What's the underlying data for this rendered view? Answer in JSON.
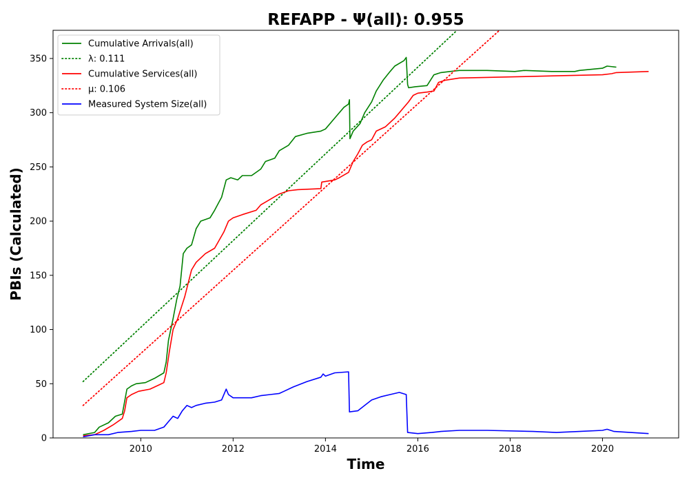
{
  "chart_data": {
    "type": "line",
    "title": "REFAPP -  Ψ(all): 0.955",
    "xlabel": "Time",
    "ylabel": "PBIs (Calculated)",
    "xlim": [
      2008.1,
      2021.65
    ],
    "ylim": [
      0,
      376
    ],
    "xticks": [
      2010,
      2012,
      2014,
      2016,
      2018,
      2020
    ],
    "yticks": [
      0,
      50,
      100,
      150,
      200,
      250,
      300,
      350
    ],
    "grid": false,
    "legend_position": "top-left",
    "legend": [
      {
        "label": "Cumulative Arrivals(all)",
        "color": "#008000",
        "style": "solid"
      },
      {
        "label": "λ: 0.111",
        "color": "#008000",
        "style": "dotted"
      },
      {
        "label": "Cumulative Services(all)",
        "color": "#ff0000",
        "style": "solid"
      },
      {
        "label": "μ: 0.106",
        "color": "#ff0000",
        "style": "dotted"
      },
      {
        "label": "Measured System Size(all)",
        "color": "#0000ff",
        "style": "solid"
      }
    ],
    "series": [
      {
        "name": "Cumulative Arrivals(all)",
        "color": "#008000",
        "style": "solid",
        "points": [
          [
            2008.75,
            3
          ],
          [
            2009.0,
            5
          ],
          [
            2009.1,
            10
          ],
          [
            2009.3,
            14
          ],
          [
            2009.45,
            20
          ],
          [
            2009.6,
            22
          ],
          [
            2009.7,
            45
          ],
          [
            2009.8,
            48
          ],
          [
            2009.9,
            50
          ],
          [
            2010.1,
            51
          ],
          [
            2010.3,
            55
          ],
          [
            2010.5,
            60
          ],
          [
            2010.55,
            70
          ],
          [
            2010.6,
            90
          ],
          [
            2010.7,
            110
          ],
          [
            2010.78,
            128
          ],
          [
            2010.85,
            140
          ],
          [
            2010.92,
            170
          ],
          [
            2011.0,
            175
          ],
          [
            2011.1,
            178
          ],
          [
            2011.2,
            193
          ],
          [
            2011.3,
            200
          ],
          [
            2011.5,
            203
          ],
          [
            2011.6,
            210
          ],
          [
            2011.7,
            218
          ],
          [
            2011.75,
            222
          ],
          [
            2011.85,
            238
          ],
          [
            2011.95,
            240
          ],
          [
            2012.1,
            238
          ],
          [
            2012.2,
            242
          ],
          [
            2012.4,
            242
          ],
          [
            2012.6,
            248
          ],
          [
            2012.7,
            255
          ],
          [
            2012.9,
            258
          ],
          [
            2013.0,
            265
          ],
          [
            2013.2,
            270
          ],
          [
            2013.35,
            278
          ],
          [
            2013.6,
            281
          ],
          [
            2013.9,
            283
          ],
          [
            2014.0,
            285
          ],
          [
            2014.2,
            295
          ],
          [
            2014.4,
            305
          ],
          [
            2014.5,
            308
          ],
          [
            2014.52,
            312
          ],
          [
            2014.53,
            276
          ],
          [
            2014.6,
            283
          ],
          [
            2014.75,
            290
          ],
          [
            2014.85,
            300
          ],
          [
            2015.0,
            310
          ],
          [
            2015.1,
            320
          ],
          [
            2015.25,
            330
          ],
          [
            2015.4,
            338
          ],
          [
            2015.5,
            343
          ],
          [
            2015.7,
            348
          ],
          [
            2015.75,
            351
          ],
          [
            2015.78,
            326
          ],
          [
            2015.8,
            323
          ],
          [
            2015.95,
            324
          ],
          [
            2016.2,
            325
          ],
          [
            2016.35,
            335
          ],
          [
            2016.5,
            337
          ],
          [
            2016.7,
            338
          ],
          [
            2016.9,
            339
          ],
          [
            2017.5,
            339
          ],
          [
            2018.1,
            338
          ],
          [
            2018.3,
            339
          ],
          [
            2018.9,
            338
          ],
          [
            2019.4,
            338
          ],
          [
            2019.5,
            339
          ],
          [
            2019.75,
            340
          ],
          [
            2020.0,
            341
          ],
          [
            2020.1,
            343
          ],
          [
            2020.3,
            342
          ]
        ]
      },
      {
        "name": "λ: 0.111",
        "color": "#008000",
        "style": "dotted",
        "points": [
          [
            2008.75,
            52
          ],
          [
            2016.85,
            376
          ]
        ]
      },
      {
        "name": "Cumulative Services(all)",
        "color": "#ff0000",
        "style": "solid",
        "points": [
          [
            2008.75,
            2
          ],
          [
            2009.0,
            3
          ],
          [
            2009.2,
            7
          ],
          [
            2009.4,
            12
          ],
          [
            2009.6,
            18
          ],
          [
            2009.65,
            25
          ],
          [
            2009.7,
            37
          ],
          [
            2009.8,
            40
          ],
          [
            2009.95,
            43
          ],
          [
            2010.2,
            45
          ],
          [
            2010.4,
            49
          ],
          [
            2010.5,
            51
          ],
          [
            2010.55,
            60
          ],
          [
            2010.62,
            80
          ],
          [
            2010.7,
            100
          ],
          [
            2010.8,
            110
          ],
          [
            2010.95,
            130
          ],
          [
            2011.1,
            155
          ],
          [
            2011.2,
            162
          ],
          [
            2011.4,
            170
          ],
          [
            2011.6,
            175
          ],
          [
            2011.8,
            190
          ],
          [
            2011.9,
            200
          ],
          [
            2012.0,
            203
          ],
          [
            2012.2,
            206
          ],
          [
            2012.5,
            210
          ],
          [
            2012.6,
            215
          ],
          [
            2012.8,
            220
          ],
          [
            2013.0,
            225
          ],
          [
            2013.2,
            228
          ],
          [
            2013.4,
            229
          ],
          [
            2013.9,
            230
          ],
          [
            2013.92,
            236
          ],
          [
            2014.2,
            238
          ],
          [
            2014.3,
            240
          ],
          [
            2014.5,
            245
          ],
          [
            2014.6,
            255
          ],
          [
            2014.7,
            262
          ],
          [
            2014.8,
            270
          ],
          [
            2014.9,
            273
          ],
          [
            2015.0,
            275
          ],
          [
            2015.1,
            283
          ],
          [
            2015.3,
            287
          ],
          [
            2015.5,
            295
          ],
          [
            2015.6,
            300
          ],
          [
            2015.8,
            310
          ],
          [
            2015.9,
            316
          ],
          [
            2016.0,
            318
          ],
          [
            2016.2,
            319
          ],
          [
            2016.35,
            320
          ],
          [
            2016.45,
            328
          ],
          [
            2016.6,
            330
          ],
          [
            2016.9,
            332
          ],
          [
            2018.0,
            333
          ],
          [
            2019.0,
            334
          ],
          [
            2020.0,
            335
          ],
          [
            2020.2,
            336
          ],
          [
            2020.3,
            337
          ],
          [
            2021.0,
            338
          ]
        ]
      },
      {
        "name": "μ: 0.106",
        "color": "#ff0000",
        "style": "dotted",
        "points": [
          [
            2008.75,
            30
          ],
          [
            2017.77,
            376
          ]
        ]
      },
      {
        "name": "Measured System Size(all)",
        "color": "#0000ff",
        "style": "solid",
        "points": [
          [
            2008.75,
            1
          ],
          [
            2009.0,
            3
          ],
          [
            2009.3,
            3
          ],
          [
            2009.5,
            5
          ],
          [
            2009.8,
            6
          ],
          [
            2010.0,
            7
          ],
          [
            2010.3,
            7
          ],
          [
            2010.5,
            10
          ],
          [
            2010.6,
            15
          ],
          [
            2010.7,
            20
          ],
          [
            2010.8,
            18
          ],
          [
            2010.9,
            25
          ],
          [
            2011.0,
            30
          ],
          [
            2011.1,
            28
          ],
          [
            2011.2,
            30
          ],
          [
            2011.4,
            32
          ],
          [
            2011.6,
            33
          ],
          [
            2011.75,
            35
          ],
          [
            2011.85,
            45
          ],
          [
            2011.9,
            40
          ],
          [
            2012.0,
            37
          ],
          [
            2012.4,
            37
          ],
          [
            2012.6,
            39
          ],
          [
            2012.8,
            40
          ],
          [
            2013.0,
            41
          ],
          [
            2013.1,
            43
          ],
          [
            2013.3,
            47
          ],
          [
            2013.6,
            52
          ],
          [
            2013.9,
            56
          ],
          [
            2013.95,
            59
          ],
          [
            2014.0,
            57
          ],
          [
            2014.2,
            60
          ],
          [
            2014.5,
            61
          ],
          [
            2014.52,
            24
          ],
          [
            2014.7,
            25
          ],
          [
            2014.85,
            30
          ],
          [
            2015.0,
            35
          ],
          [
            2015.2,
            38
          ],
          [
            2015.4,
            40
          ],
          [
            2015.6,
            42
          ],
          [
            2015.75,
            40
          ],
          [
            2015.78,
            5
          ],
          [
            2016.0,
            4
          ],
          [
            2016.3,
            5
          ],
          [
            2016.5,
            6
          ],
          [
            2016.9,
            7
          ],
          [
            2017.5,
            7
          ],
          [
            2018.5,
            6
          ],
          [
            2019.0,
            5
          ],
          [
            2019.5,
            6
          ],
          [
            2020.0,
            7
          ],
          [
            2020.1,
            8
          ],
          [
            2020.25,
            6
          ],
          [
            2021.0,
            4
          ]
        ]
      }
    ]
  }
}
